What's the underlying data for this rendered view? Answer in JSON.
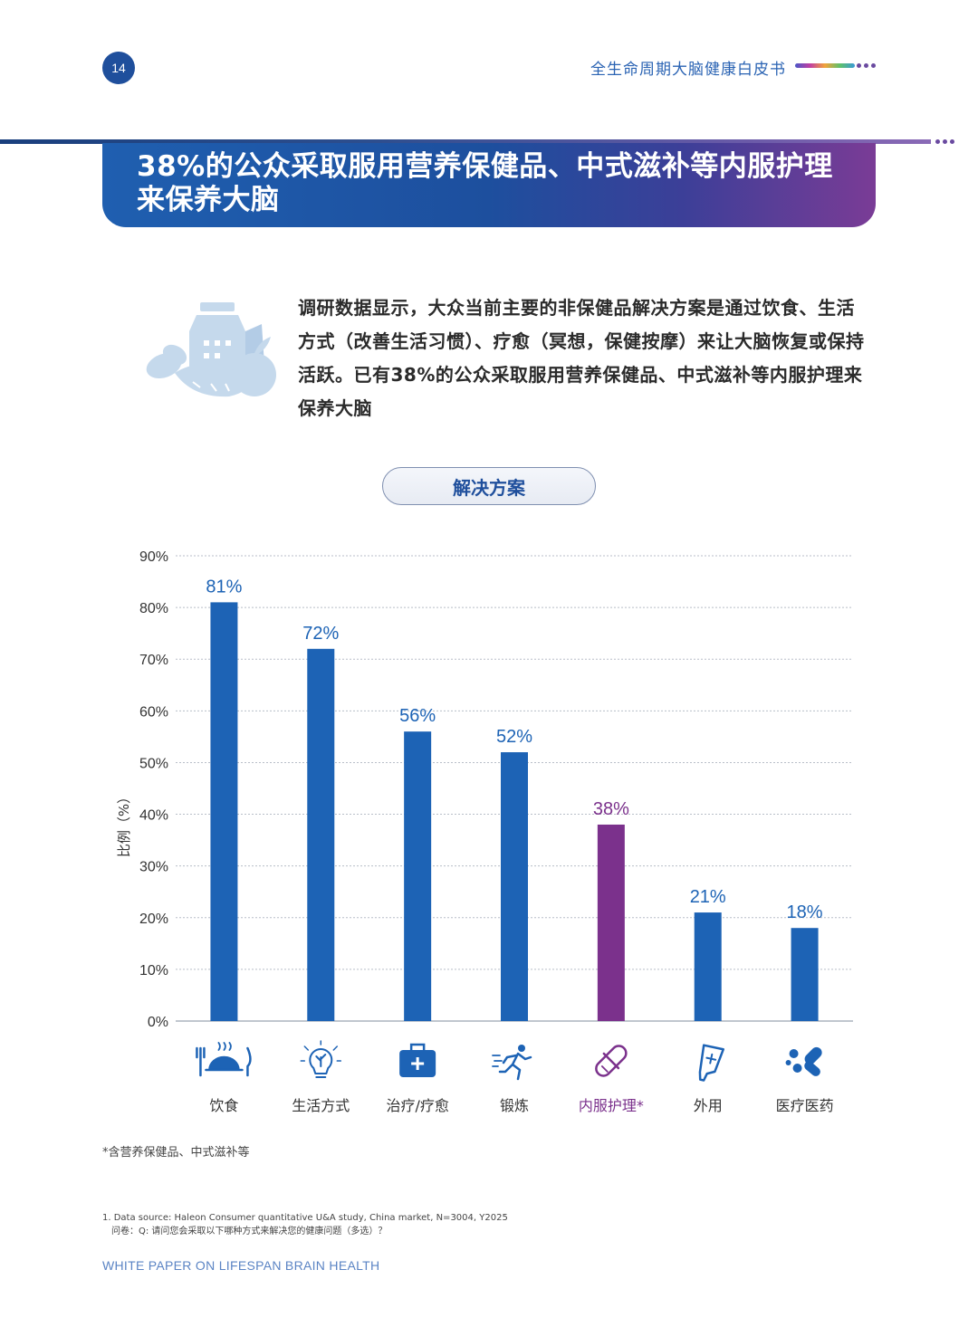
{
  "header": {
    "page_number": "14",
    "doc_title": "全生命周期大脑健康白皮书"
  },
  "banner": {
    "title": "38%的公众采取服用营养保健品、中式滋补等内服护理来保养大脑"
  },
  "intro_text": "调研数据显示，大众当前主要的非保健品解决方案是通过饮食、生活方式（改善生活习惯）、疗愈（冥想，保健按摩）来让大脑恢复或保持活跃。已有38%的公众采取服用营养保健品、中式滋补等内服护理来保养大脑",
  "illustration": {
    "icon": "milk-carrot-apple-icon"
  },
  "section_pill": "解决方案",
  "chart_data": {
    "type": "bar",
    "categories": [
      "饮食",
      "生活方式",
      "治疗/疗愈",
      "锻炼",
      "内服护理*",
      "外用",
      "医疗医药"
    ],
    "values": [
      81,
      72,
      56,
      52,
      38,
      21,
      18
    ],
    "value_labels": [
      "81%",
      "72%",
      "56%",
      "52%",
      "38%",
      "21%",
      "18%"
    ],
    "ylabel": "比例（%）",
    "ylim": [
      0,
      90
    ],
    "yticks": [
      "0%",
      "10%",
      "20%",
      "30%",
      "40%",
      "50%",
      "60%",
      "70%",
      "80%",
      "90%"
    ],
    "grid": true,
    "colors": {
      "default": "#1d63b5",
      "highlight": "#7b318c"
    },
    "highlight_index": 4,
    "category_icons": [
      "dining-icon",
      "lightbulb-icon",
      "first-aid-kit-icon",
      "running-icon",
      "pill-icon",
      "ointment-tube-icon",
      "medicine-icon"
    ]
  },
  "footnote": "*含营养保健品、中式滋补等",
  "source": {
    "line1": "1. Data source: Haleon Consumer quantitative U&A study, China market, N=3004, Y2025",
    "line2": "问卷：Q: 请问您会采取以下哪种方式来解决您的健康问题（多选）？"
  },
  "footer_text": "WHITE PAPER ON LIFESPAN BRAIN HEALTH"
}
